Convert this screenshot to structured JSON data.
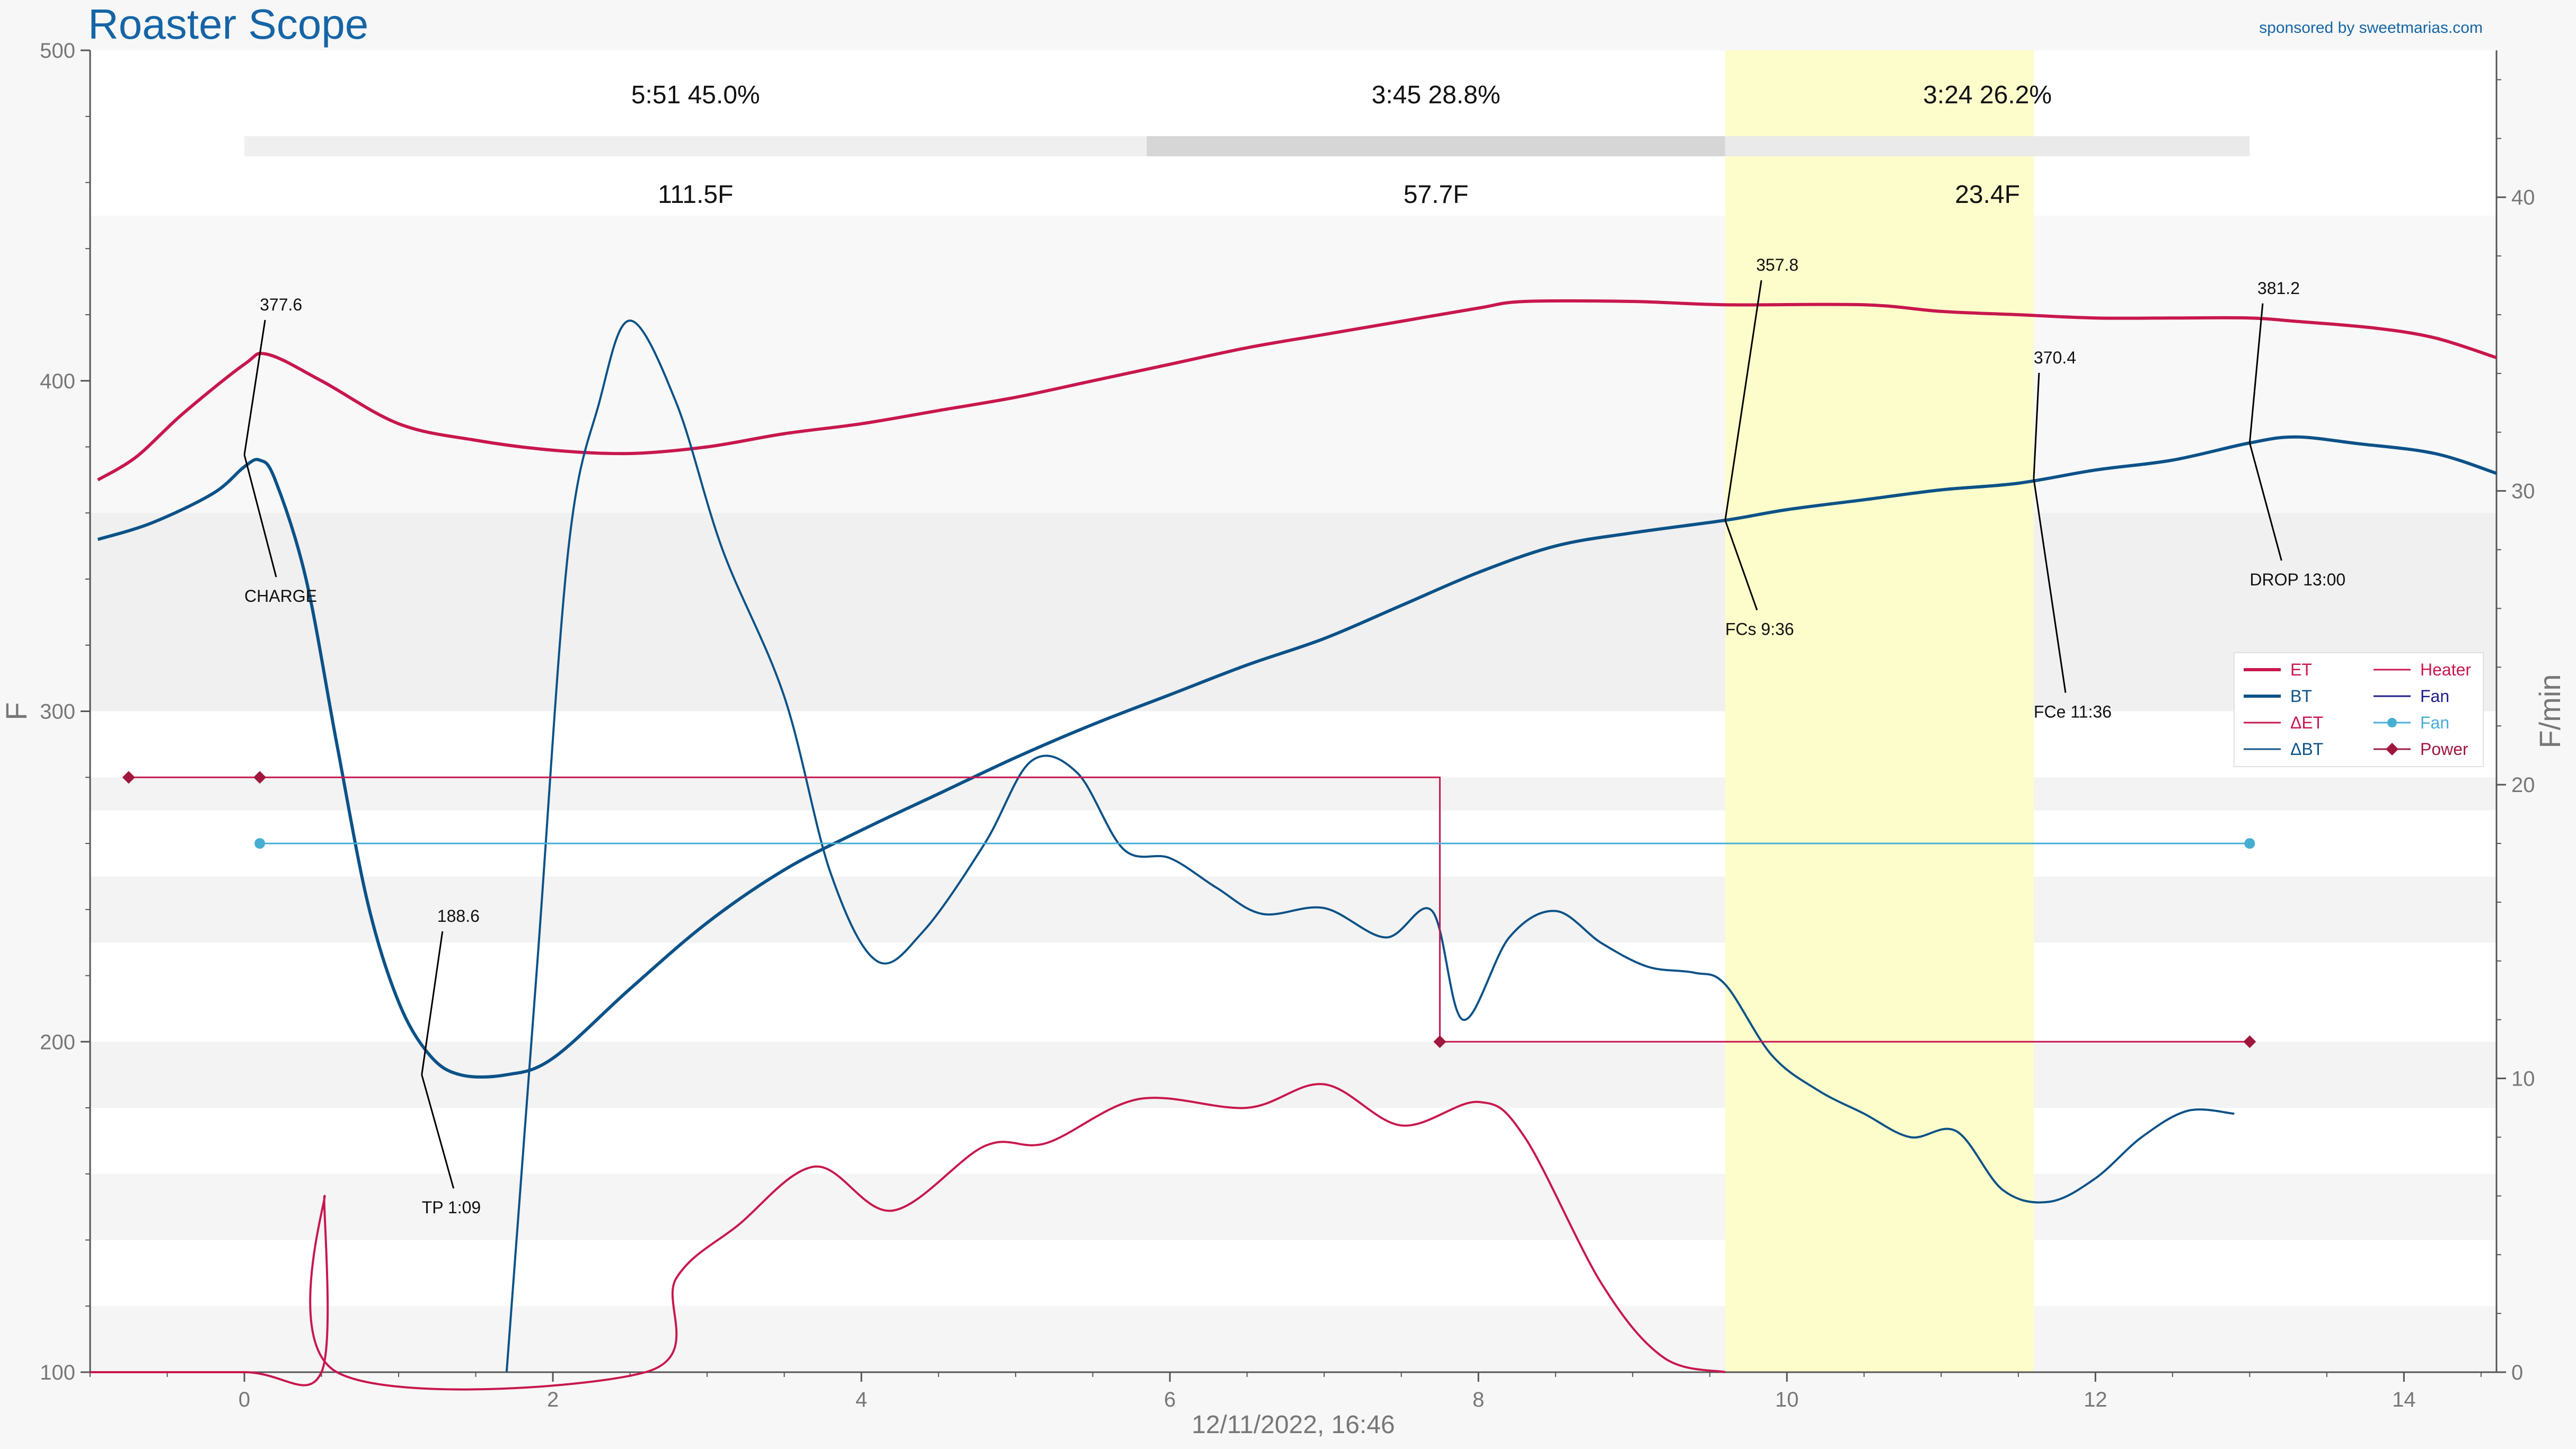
{
  "app": {
    "title": "Roaster Scope",
    "sponsor": "sponsored by sweetmarias.com"
  },
  "colors": {
    "et": "#c8174e",
    "bt": "#0b5288",
    "fan": "#46aed3",
    "heater": "#c8174e",
    "power": "#a0173e",
    "fan_control": "#1d1d8a",
    "phase_highlight": "#fdfdc8"
  },
  "chart_data": {
    "type": "line",
    "xlabel": "12/11/2022, 16:46",
    "ylabel": "F",
    "y2label": "F/min",
    "xlim": [
      -1,
      14.6
    ],
    "ylim": [
      100,
      500
    ],
    "y2lim": [
      0,
      45
    ],
    "xticks": [
      "0",
      "2",
      "4",
      "6",
      "8",
      "10",
      "12",
      "14"
    ],
    "yticks": [
      "100",
      "200",
      "300",
      "400",
      "500"
    ],
    "y2ticks": [
      "0",
      "10",
      "20",
      "30",
      "40"
    ],
    "grid": false,
    "legend_position": "right",
    "legend": [
      "ET",
      "BT",
      "ΔET",
      "ΔBT",
      "Heater",
      "Fan",
      "Fan",
      "Power"
    ],
    "phases": [
      {
        "time": "5:51",
        "percent": "45.0%",
        "delta": "111.5F",
        "start": 0,
        "end": 5.85
      },
      {
        "time": "3:45",
        "percent": "28.8%",
        "delta": "57.7F",
        "start": 5.85,
        "end": 9.6
      },
      {
        "time": "3:24",
        "percent": "26.2%",
        "delta": "23.4F",
        "start": 9.6,
        "end": 13.0
      }
    ],
    "development_highlight": [
      9.6,
      11.6
    ],
    "events": [
      {
        "label": "CHARGE",
        "value": "377.6",
        "x": 0,
        "y": 377.6
      },
      {
        "label": "TP 1:09",
        "value": "188.6",
        "x": 1.15,
        "y": 190
      },
      {
        "label": "FCs 9:36",
        "value": "357.8",
        "x": 9.6,
        "y": 357.8
      },
      {
        "label": "FCe 11:36",
        "value": "370.4",
        "x": 11.6,
        "y": 370.4
      },
      {
        "label": "DROP 13:00",
        "value": "381.2",
        "x": 13.0,
        "y": 381.2
      }
    ],
    "series": [
      {
        "name": "ET",
        "axis": "temp",
        "x": [
          -0.95,
          -0.7,
          -0.4,
          0,
          0.15,
          0.5,
          1.0,
          1.5,
          2.0,
          2.5,
          3.0,
          3.5,
          4.0,
          4.5,
          5.0,
          5.5,
          6.0,
          6.5,
          7.0,
          7.5,
          8.0,
          8.3,
          9.0,
          9.6,
          10.5,
          11.0,
          11.5,
          12.0,
          12.5,
          13.0,
          13.3,
          13.8,
          14.2,
          14.6
        ],
        "y": [
          370,
          377,
          390,
          405,
          408,
          400,
          387,
          382,
          379,
          378,
          380,
          384,
          387,
          391,
          395,
          400,
          405,
          410,
          414,
          418,
          422,
          424,
          424,
          423,
          423,
          421,
          420,
          419,
          419,
          419,
          418,
          416,
          413,
          407
        ]
      },
      {
        "name": "BT",
        "axis": "temp",
        "x": [
          -0.95,
          -0.6,
          -0.2,
          0,
          0.1,
          0.2,
          0.4,
          0.6,
          0.8,
          1.0,
          1.2,
          1.4,
          1.7,
          2.0,
          2.5,
          3.0,
          3.5,
          4.0,
          4.5,
          5.0,
          5.5,
          6.0,
          6.5,
          7.0,
          7.5,
          8.0,
          8.5,
          9.0,
          9.6,
          10.0,
          10.5,
          11.0,
          11.5,
          12.0,
          12.5,
          13.0,
          13.3,
          13.7,
          14.2,
          14.6
        ],
        "y": [
          352,
          357,
          366,
          374,
          376,
          370,
          340,
          290,
          242,
          212,
          196,
          190,
          190,
          195,
          216,
          236,
          252,
          264,
          275,
          286,
          296,
          305,
          314,
          322,
          332,
          342,
          350,
          354,
          357.8,
          361,
          364,
          367,
          369,
          373,
          376,
          381.2,
          383,
          381,
          378,
          372
        ]
      },
      {
        "name": "ΔET",
        "axis": "rate",
        "x": [
          -1,
          0,
          0.5,
          0.52,
          0.6,
          2.6,
          2.8,
          3.2,
          3.7,
          4.2,
          4.8,
          5.2,
          5.8,
          6.5,
          7.0,
          7.5,
          8.0,
          8.3,
          8.8,
          9.2,
          9.6
        ],
        "y": [
          0,
          0,
          0,
          6,
          0,
          0,
          3.2,
          5.0,
          7.0,
          5.5,
          7.7,
          7.8,
          9.3,
          9.0,
          9.8,
          8.4,
          9.2,
          8.0,
          3.0,
          0.5,
          0
        ]
      },
      {
        "name": "ΔBT",
        "axis": "rate",
        "x": [
          1.7,
          1.9,
          2.1,
          2.3,
          2.5,
          2.8,
          3.1,
          3.5,
          3.8,
          4.1,
          4.4,
          4.8,
          5.1,
          5.4,
          5.7,
          6.0,
          6.3,
          6.6,
          7.0,
          7.4,
          7.7,
          7.9,
          8.2,
          8.5,
          8.8,
          9.1,
          9.4,
          9.6,
          9.9,
          10.2,
          10.5,
          10.8,
          11.1,
          11.4,
          11.7,
          12.0,
          12.3,
          12.6,
          12.9
        ],
        "y": [
          0,
          14,
          28,
          33,
          35.8,
          33,
          28,
          23,
          17,
          14,
          15,
          18,
          20.8,
          20.4,
          17.8,
          17.5,
          16.5,
          15.6,
          15.8,
          14.8,
          15.7,
          12,
          14.8,
          15.7,
          14.6,
          13.8,
          13.6,
          13.2,
          10.8,
          9.6,
          8.8,
          8.0,
          8.2,
          6.2,
          5.8,
          6.6,
          8.0,
          8.9,
          8.8
        ]
      },
      {
        "name": "Heater",
        "axis": "temp",
        "x": [
          -0.75,
          0.1,
          7.75,
          7.75,
          13.0
        ],
        "y": [
          280,
          280,
          280,
          200,
          200
        ]
      },
      {
        "name": "Fan",
        "axis": "temp",
        "x": [
          0.1,
          13.0
        ],
        "y": [
          260,
          260
        ]
      }
    ]
  }
}
